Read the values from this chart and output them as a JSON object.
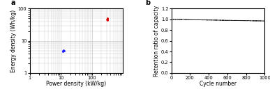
{
  "panel_a": {
    "title": "a",
    "xlabel": "Power density (kW/kg)",
    "ylabel": "Energy density (Wh/kg)",
    "xlim": [
      1,
      1000
    ],
    "ylim": [
      1,
      100
    ],
    "blue_points": [
      [
        11.5,
        4.8
      ],
      [
        12.2,
        5.2
      ],
      [
        12.8,
        5.0
      ],
      [
        11.8,
        4.6
      ]
    ],
    "red_points": [
      [
        310,
        44
      ],
      [
        325,
        47
      ],
      [
        318,
        50
      ],
      [
        305,
        46
      ],
      [
        320,
        48
      ]
    ],
    "blue_color": "#1a1aff",
    "red_color": "#dd0000",
    "grid_color": "#c8c8c8",
    "bg_color": "#ffffff"
  },
  "panel_b": {
    "title": "b",
    "xlabel": "Cycle number",
    "ylabel": "Retention ratio of capacity",
    "xlim": [
      0,
      1000
    ],
    "ylim": [
      0.0,
      1.2
    ],
    "yticks": [
      0.0,
      0.2,
      0.4,
      0.6,
      0.8,
      1.0,
      1.2
    ],
    "xticks": [
      0,
      200,
      400,
      600,
      800,
      1000
    ],
    "line_color": "#222222",
    "start_retention": 1.0,
    "end_retention": 0.97,
    "n_cycles": 1000,
    "bg_color": "#ffffff"
  },
  "label_fontsize": 5.5,
  "tick_fontsize": 4.8,
  "panel_label_fontsize": 7,
  "fig_width": 3.87,
  "fig_height": 1.38
}
